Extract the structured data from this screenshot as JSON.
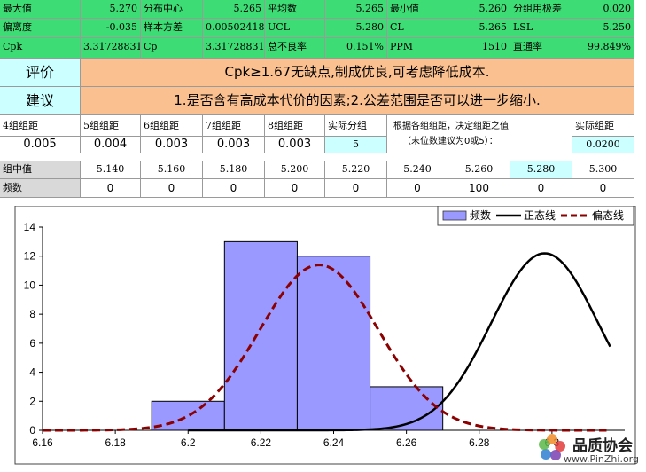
{
  "stats": {
    "row1": [
      {
        "label": "最大值",
        "value": "5.270"
      },
      {
        "label": "分布中心",
        "value": "5.265"
      },
      {
        "label": "平均数",
        "value": "5.265"
      },
      {
        "label": "最小值",
        "value": "5.260"
      },
      {
        "label": "分组用极差",
        "value": "0.020"
      }
    ],
    "row2": [
      {
        "label": "偏离度",
        "value": "-0.035"
      },
      {
        "label": "样本方差",
        "value": "0.00502418"
      },
      {
        "label": "UCL",
        "value": "5.280"
      },
      {
        "label": "CL",
        "value": "5.265"
      },
      {
        "label": "LSL",
        "value": "5.250"
      }
    ],
    "row3": [
      {
        "label": "Cpk",
        "value": "3.31728831"
      },
      {
        "label": "Cp",
        "value": "3.31728831"
      },
      {
        "label": "总不良率",
        "value": "0.151%"
      },
      {
        "label": "PPM",
        "value": "1510"
      },
      {
        "label": "直通率",
        "value": "99.849%"
      }
    ]
  },
  "evaluation": {
    "label": "评价",
    "text": "Cpk≥1.67无缺点,制成优良,可考虑降低成本."
  },
  "suggestion": {
    "label": "建议",
    "text": "1.是否含有高成本代价的因素;2.公差范围是否可以进一步缩小."
  },
  "grouping": {
    "headers": [
      "4组组距",
      "5组组距",
      "6组组距",
      "7组组距",
      "8组组距",
      "实际分组"
    ],
    "values": [
      "0.005",
      "0.004",
      "0.003",
      "0.003",
      "0.003",
      "5"
    ],
    "note_line1": "根据各组组距，决定组距之值",
    "note_line2": "（末位数建议为0或5）：",
    "actual_label": "实际组距",
    "actual_value": "0.0200"
  },
  "bins": {
    "mid_label": "组中值",
    "freq_label": "频数",
    "mids": [
      "5.140",
      "5.160",
      "5.180",
      "5.200",
      "5.220",
      "5.240",
      "5.260",
      "5.280",
      "5.300"
    ],
    "freqs": [
      "0",
      "0",
      "0",
      "0",
      "0",
      "0",
      "100",
      "0",
      "0"
    ]
  },
  "legend": {
    "hist": "频数",
    "normal": "正态线",
    "skew": "偏态线"
  },
  "watermark": {
    "logo_text": "品质协会",
    "url": "www.PinZhi.org"
  },
  "chart_data": {
    "type": "bar",
    "x_range": [
      6.16,
      6.32
    ],
    "y_range": [
      0,
      14
    ],
    "x_ticks": [
      6.16,
      6.18,
      6.2,
      6.22,
      6.24,
      6.26,
      6.28,
      6.3
    ],
    "x_tick_labels": [
      "6.16",
      "6.18",
      "6.2",
      "6.22",
      "6.24",
      "6.26",
      "6.28",
      "6.3"
    ],
    "y_ticks": [
      0,
      2,
      4,
      6,
      8,
      10,
      12,
      14
    ],
    "bars": [
      {
        "from": 6.19,
        "to": 6.21,
        "value": 2
      },
      {
        "from": 6.21,
        "to": 6.23,
        "value": 13
      },
      {
        "from": 6.23,
        "to": 6.25,
        "value": 12
      },
      {
        "from": 6.25,
        "to": 6.27,
        "value": 3
      }
    ],
    "series": [
      {
        "name": "频数",
        "kind": "histogram",
        "color": "#9999ff"
      },
      {
        "name": "正态线",
        "kind": "normal",
        "color": "#000000",
        "mean": 6.298,
        "sd": 0.0147,
        "peak": 12.2,
        "x_from": 6.2,
        "x_to": 6.316
      },
      {
        "name": "偏态线",
        "kind": "skew",
        "color": "#8b0000",
        "mean": 6.236,
        "sd": 0.0163,
        "peak": 11.4,
        "x_from": 6.16,
        "x_to": 6.315
      }
    ],
    "grid": false,
    "legend_position": "top-right"
  }
}
